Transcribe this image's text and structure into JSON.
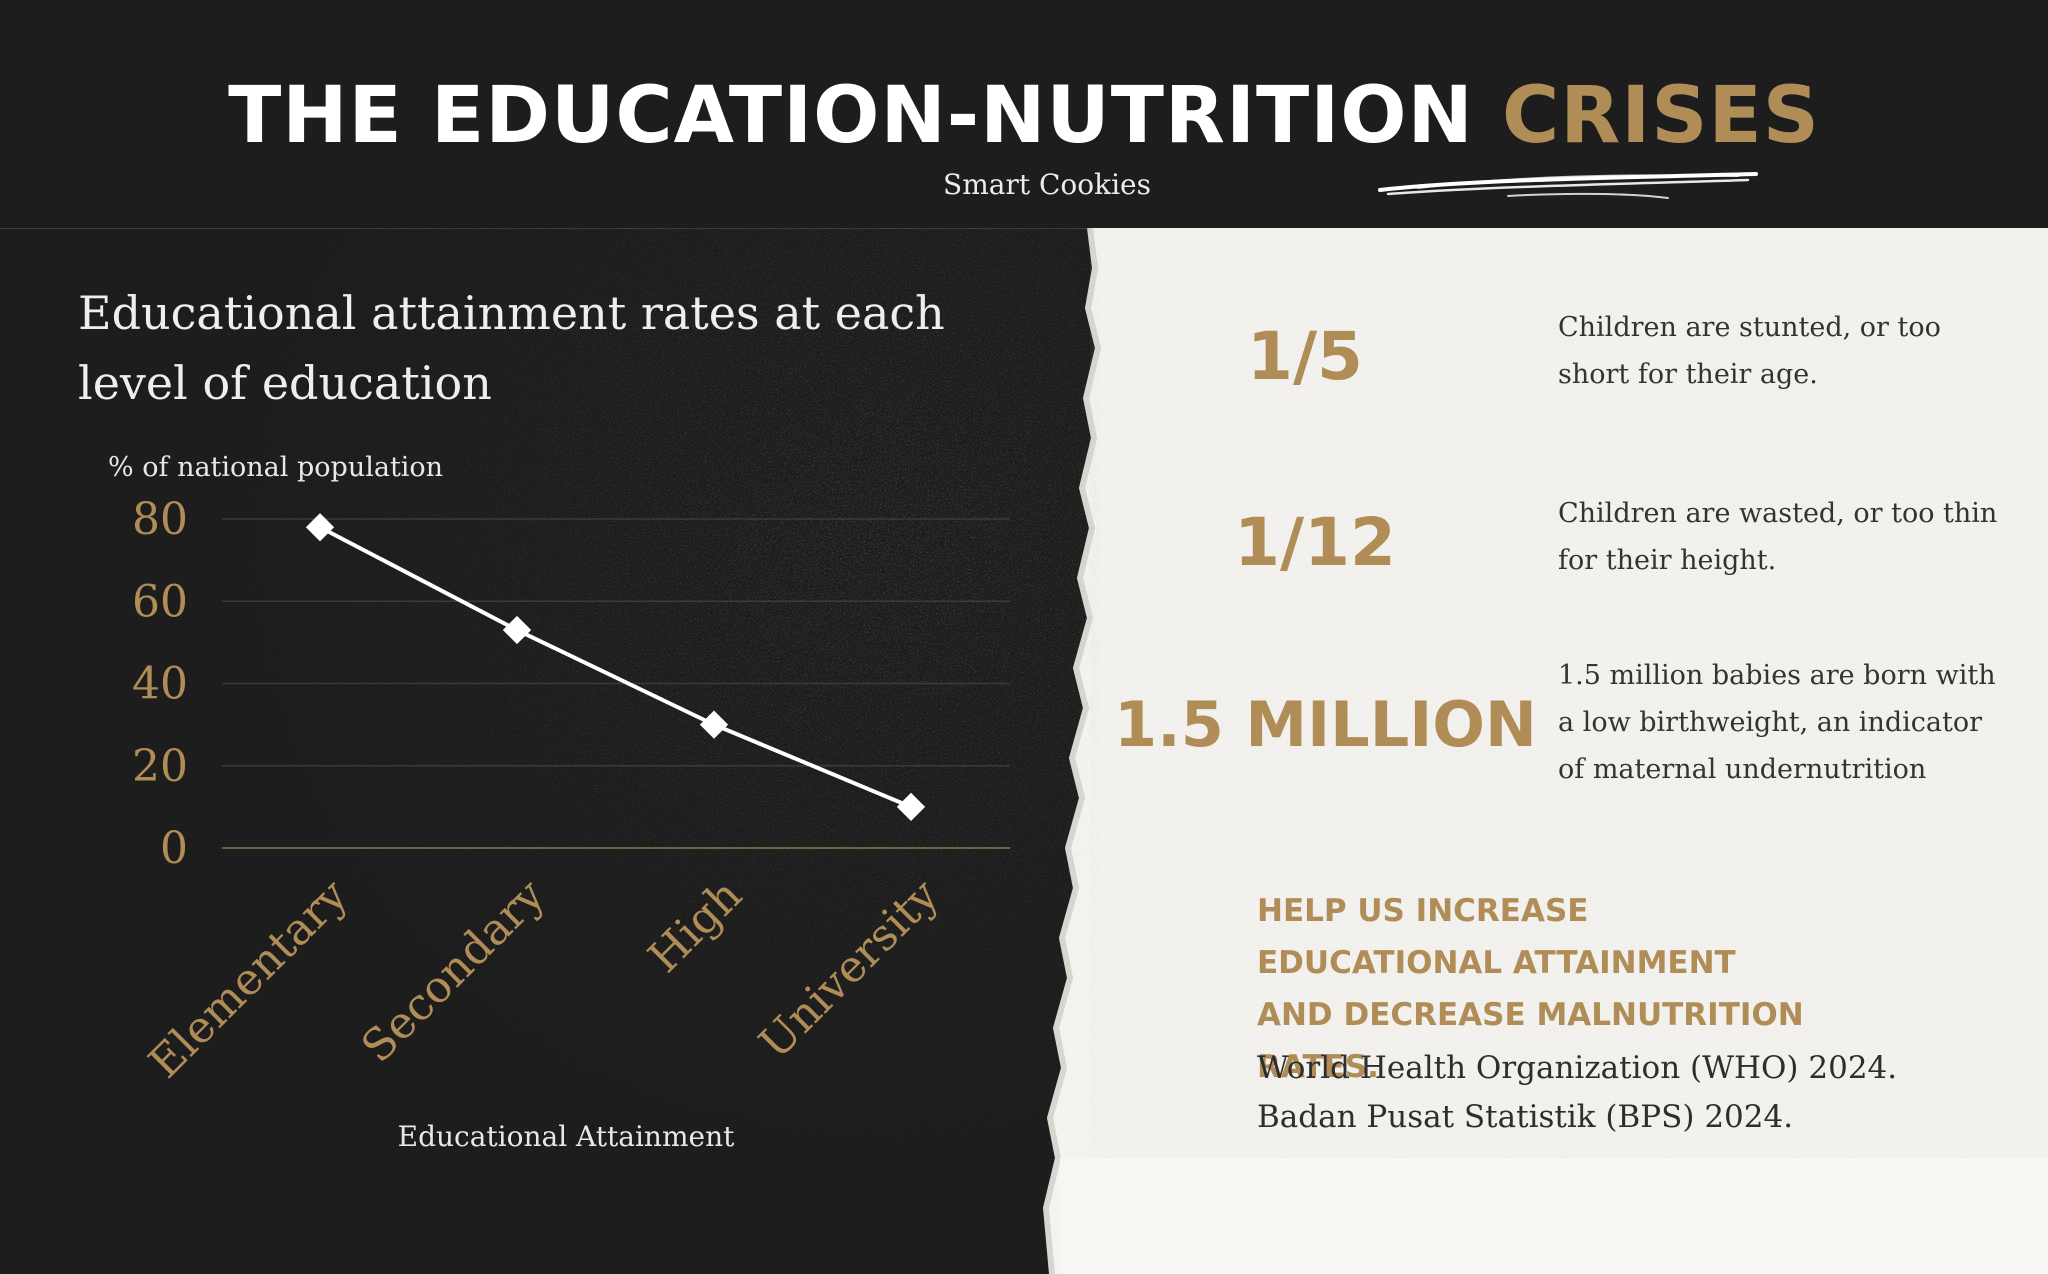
{
  "header": {
    "title_main": "THE EDUCATION-NUTRITION",
    "title_accent": "CRISES",
    "subtitle": "Smart Cookies"
  },
  "chart_heading": "Educational attainment rates at each level of education",
  "chart_data": {
    "type": "line",
    "title": "Educational attainment rates at each level of education",
    "ylabel": "% of national population",
    "xlabel": "Educational Attainment",
    "categories": [
      "Elementary",
      "Secondary",
      "High",
      "University"
    ],
    "values": [
      78,
      53,
      30,
      10
    ],
    "ylim": [
      0,
      80
    ],
    "yticks": [
      0,
      20,
      40,
      60,
      80
    ],
    "grid": true,
    "series": [
      {
        "name": "% of national population",
        "values": [
          78,
          53,
          30,
          10
        ]
      }
    ]
  },
  "stats": [
    {
      "value": "1/5",
      "text": "Children are stunted, or too short for their age."
    },
    {
      "value": "1/12",
      "text": "Children are wasted, or too thin for their height."
    },
    {
      "value": "1.5 MILLION",
      "text": "1.5 million babies are born with a low birthweight, an indicator of maternal undernutrition"
    }
  ],
  "cta": "HELP US INCREASE EDUCATIONAL ATTAINMENT AND DECREASE MALNUTRITION RATES.",
  "sources": [
    "World Health Organization (WHO) 2024.",
    "Badan Pusat Statistik (BPS) 2024."
  ],
  "colors": {
    "background": "#1d1d1d",
    "accent": "#b08d57",
    "paper": "#f4f3f0",
    "line": "#ffffff",
    "grid": "#3b3b38"
  }
}
